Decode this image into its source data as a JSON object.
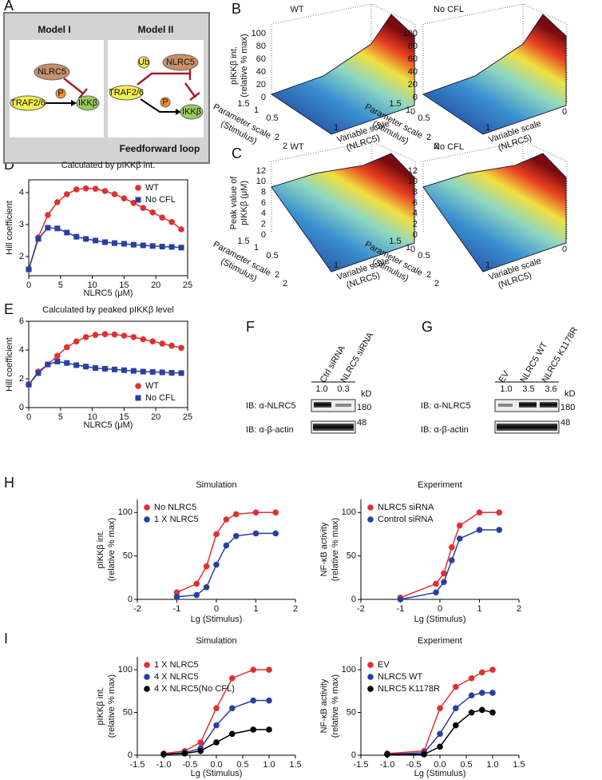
{
  "panels": [
    "A",
    "B",
    "C",
    "D",
    "E",
    "F",
    "G",
    "H",
    "I"
  ],
  "diagram": {
    "model1": "Model I",
    "model2": "Model II",
    "nlrc5": "NLRC5",
    "traf": "TRAF2/6",
    "p": "P",
    "ikk": "IKKβ",
    "ub": "Ub",
    "loop": "Feedforward loop"
  },
  "surfaces": [
    {
      "title": "WT",
      "z_label": [
        "pIKKβ int.",
        "(relative % max)"
      ],
      "zticks": [
        0,
        20,
        40,
        60,
        80,
        100
      ],
      "y_label": [
        "Parameter scale",
        "(Stimulus)"
      ],
      "yticks": [
        2,
        1.5,
        1,
        0.5
      ],
      "x_label": [
        "Variable scale",
        "(NLRC5)"
      ],
      "xticks": [
        2,
        1,
        0
      ]
    },
    {
      "title": "No CFL",
      "zticks": [
        0,
        20,
        40,
        60,
        80,
        100
      ],
      "y_label": [
        "Parameter scale",
        "(Stimulus)"
      ],
      "yticks": [
        2,
        1.5,
        1,
        0.5
      ],
      "x_label": [
        "Variable scale",
        "(NLRC5)"
      ],
      "xticks": [
        2,
        1,
        0
      ]
    },
    {
      "title": "WT",
      "z_label": [
        "Peak value of",
        "pIKKβ (μM)"
      ],
      "zticks": [
        0,
        2,
        4,
        6,
        8,
        10,
        12
      ],
      "y_label": [
        "Parameter scale",
        "(Stimulus)"
      ],
      "yticks": [
        2,
        1.5,
        1,
        0.5
      ],
      "x_label": [
        "Variable scale",
        "(NLRC5)"
      ],
      "xticks": [
        2,
        1,
        0
      ]
    },
    {
      "title": "No CFL",
      "zticks": [
        0,
        2,
        4,
        6,
        8,
        10,
        12
      ],
      "y_label": [
        "Parameter scale",
        "(Stimulus)"
      ],
      "yticks": [
        2,
        1.5,
        1,
        0.5
      ],
      "x_label": [
        "Variable scale",
        "(NLRC5)"
      ],
      "xticks": [
        2,
        1,
        0
      ]
    }
  ],
  "blots": [
    {
      "lanes": [
        "Ctrl siRNA",
        "NLRC5 siRNA"
      ],
      "quant": [
        "1.0",
        "0.3"
      ],
      "unit": "kD",
      "rows": [
        {
          "label": "IB: α-NLRC5",
          "mw": "180"
        },
        {
          "label": "IB: α-β-actin",
          "mw": "48"
        }
      ]
    },
    {
      "lanes": [
        "EV",
        "NLRC5 WT",
        "NLRC5 K1178R"
      ],
      "quant": [
        "1.0",
        "3.5",
        "3.6"
      ],
      "unit": "kD",
      "rows": [
        {
          "label": "IB: α-NLRC5",
          "mw": "180"
        },
        {
          "label": "IB: α-β-actin",
          "mw": "48"
        }
      ]
    }
  ],
  "chart_data": [
    {
      "type": "line",
      "title": "Calculated by pIKKβ int.",
      "xlabel": "NLRC5 (μM)",
      "ylabel": [
        "Hill coefficient"
      ],
      "frame": true,
      "legend": "upper right",
      "x": [
        0,
        1.5,
        3,
        4.5,
        6,
        7.5,
        9,
        10.5,
        12,
        13.5,
        15,
        16.5,
        18,
        19.5,
        21,
        22.5,
        24
      ],
      "series": [
        {
          "name": "WT",
          "color": "#e03030",
          "marker": "circle",
          "values": [
            1.6,
            2.6,
            3.3,
            3.7,
            3.95,
            4.1,
            4.13,
            4.12,
            4.05,
            3.95,
            3.82,
            3.68,
            3.52,
            3.38,
            3.22,
            3.08,
            2.85
          ]
        },
        {
          "name": "No CFL",
          "color": "#2a3fa0",
          "marker": "square",
          "values": [
            1.6,
            2.55,
            2.9,
            2.88,
            2.75,
            2.62,
            2.55,
            2.5,
            2.45,
            2.42,
            2.4,
            2.37,
            2.35,
            2.33,
            2.31,
            2.3,
            2.28
          ]
        }
      ],
      "xlim": [
        0,
        25
      ],
      "xticks": [
        0,
        5,
        10,
        15,
        20,
        25
      ],
      "ylim": [
        1.4,
        4.4
      ],
      "yticks": [
        2,
        3,
        4
      ]
    },
    {
      "type": "line",
      "title": "Calculated by peaked pIKKβ level",
      "xlabel": "NLRC5 (μM)",
      "ylabel": [
        "Hill coefficient"
      ],
      "frame": true,
      "legend": "lower right",
      "x": [
        0,
        1.5,
        3,
        4.5,
        6,
        7.5,
        9,
        10.5,
        12,
        13.5,
        15,
        16.5,
        18,
        19.5,
        21,
        22.5,
        24
      ],
      "series": [
        {
          "name": "WT",
          "color": "#e03030",
          "marker": "circle",
          "values": [
            1.6,
            2.5,
            3.0,
            3.6,
            4.2,
            4.6,
            4.9,
            5.05,
            5.1,
            5.08,
            5.0,
            4.9,
            4.75,
            4.6,
            4.45,
            4.3,
            4.15
          ]
        },
        {
          "name": "No CFL",
          "color": "#2a3fa0",
          "marker": "square",
          "values": [
            1.6,
            2.4,
            3.0,
            3.2,
            3.1,
            2.95,
            2.85,
            2.75,
            2.7,
            2.65,
            2.6,
            2.55,
            2.5,
            2.48,
            2.45,
            2.42,
            2.4
          ]
        }
      ],
      "xlim": [
        0,
        25
      ],
      "xticks": [
        0,
        5,
        10,
        15,
        20,
        25
      ],
      "ylim": [
        0,
        6
      ],
      "yticks": [
        0,
        2,
        4,
        6
      ]
    },
    {
      "type": "line",
      "title": "Simulation",
      "xlabel": "Lg (Stimulus)",
      "ylabel": [
        "pIKKβ int.",
        "(relative % max)"
      ],
      "legend": "upper left",
      "x": [
        -1,
        -0.5,
        -0.25,
        0,
        0.25,
        0.5,
        1,
        1.5
      ],
      "series": [
        {
          "name": "No NLRC5",
          "color": "#e03030",
          "marker": "circle",
          "values": [
            8,
            18,
            38,
            75,
            92,
            98,
            100,
            100
          ]
        },
        {
          "name": "1 X NLRC5",
          "color": "#2a3fa0",
          "marker": "circle",
          "values": [
            3,
            5,
            14,
            40,
            62,
            73,
            76,
            76
          ]
        }
      ],
      "xlim": [
        -2,
        2
      ],
      "xticks": [
        -2,
        -1,
        0,
        1,
        2
      ],
      "ylim": [
        0,
        115
      ],
      "yticks": [
        0,
        50,
        100
      ]
    },
    {
      "type": "line",
      "title": "Experiment",
      "xlabel": "Lg (Stimulus)",
      "ylabel": [
        "NF-κB activity",
        "(relative % max)"
      ],
      "legend": "upper left",
      "x": [
        -1,
        -0.1,
        0.1,
        0.3,
        0.5,
        1,
        1.5
      ],
      "series": [
        {
          "name": "NLRC5 siRNA",
          "color": "#e03030",
          "marker": "circle",
          "values": [
            2,
            18,
            30,
            60,
            85,
            100,
            100
          ]
        },
        {
          "name": "Control siRNA",
          "color": "#2a3fa0",
          "marker": "circle",
          "values": [
            0,
            8,
            20,
            45,
            70,
            80,
            80
          ]
        }
      ],
      "xlim": [
        -2,
        2
      ],
      "xticks": [
        -2,
        -1,
        0,
        1,
        2
      ],
      "ylim": [
        0,
        115
      ],
      "yticks": [
        0,
        50,
        100
      ]
    },
    {
      "type": "line",
      "title": "Simulation",
      "xlabel": "Lg (Stimulus)",
      "ylabel": [
        "pIKKβ int.",
        "(relative % max)"
      ],
      "legend": "upper left",
      "x": [
        -1,
        -0.6,
        -0.3,
        0,
        0.3,
        0.7,
        1
      ],
      "series": [
        {
          "name": "1 X NLRC5",
          "color": "#e03030",
          "marker": "circle",
          "values": [
            2,
            5,
            15,
            55,
            90,
            100,
            100
          ]
        },
        {
          "name": "4 X NLRC5",
          "color": "#2a3fa0",
          "marker": "circle",
          "values": [
            1,
            3,
            8,
            35,
            55,
            64,
            64
          ]
        },
        {
          "name": "4 X NLRC5(No CFL)",
          "color": "#000000",
          "marker": "circle",
          "values": [
            1,
            2,
            5,
            15,
            25,
            30,
            30
          ]
        }
      ],
      "xlim": [
        -1.5,
        1.5
      ],
      "xticks": [
        {
          "value": -1.5,
          "label": "-1.5"
        },
        {
          "value": -1,
          "label": "-1.0"
        },
        {
          "value": -0.5,
          "label": "-0.5"
        },
        {
          "value": 0,
          "label": "0.0"
        },
        {
          "value": 0.5,
          "label": "0.5"
        },
        {
          "value": 1,
          "label": "1.0"
        },
        {
          "value": 1.5,
          "label": "1.5"
        }
      ],
      "ylim": [
        0,
        115
      ],
      "yticks": [
        0,
        50,
        100
      ]
    },
    {
      "type": "line",
      "title": "Experiment",
      "xlabel": "Lg (Stimulus)",
      "ylabel": [
        "NF-κB activity",
        "(relative % max)"
      ],
      "legend": "upper left",
      "x": [
        -1,
        -0.3,
        0,
        0.3,
        0.6,
        0.8,
        1
      ],
      "series": [
        {
          "name": "EV",
          "color": "#e03030",
          "marker": "circle",
          "values": [
            2,
            5,
            55,
            80,
            90,
            97,
            100
          ]
        },
        {
          "name": "NLRC5 WT",
          "color": "#2a3fa0",
          "marker": "circle",
          "values": [
            1,
            3,
            25,
            55,
            70,
            73,
            73
          ]
        },
        {
          "name": "NLRC5 K1178R",
          "color": "#000000",
          "marker": "circle",
          "values": [
            1,
            1,
            10,
            35,
            50,
            53,
            50
          ]
        }
      ],
      "xlim": [
        -1.5,
        1.5
      ],
      "xticks": [
        {
          "value": -1.5,
          "label": "-1.5"
        },
        {
          "value": -1,
          "label": "-1.0"
        },
        {
          "value": -0.5,
          "label": "-0.5"
        },
        {
          "value": 0,
          "label": "0.0"
        },
        {
          "value": 0.5,
          "label": "0.5"
        },
        {
          "value": 1,
          "label": "1.0"
        },
        {
          "value": 1.5,
          "label": "1.5"
        }
      ],
      "ylim": [
        0,
        115
      ],
      "yticks": [
        0,
        50,
        100
      ]
    }
  ]
}
